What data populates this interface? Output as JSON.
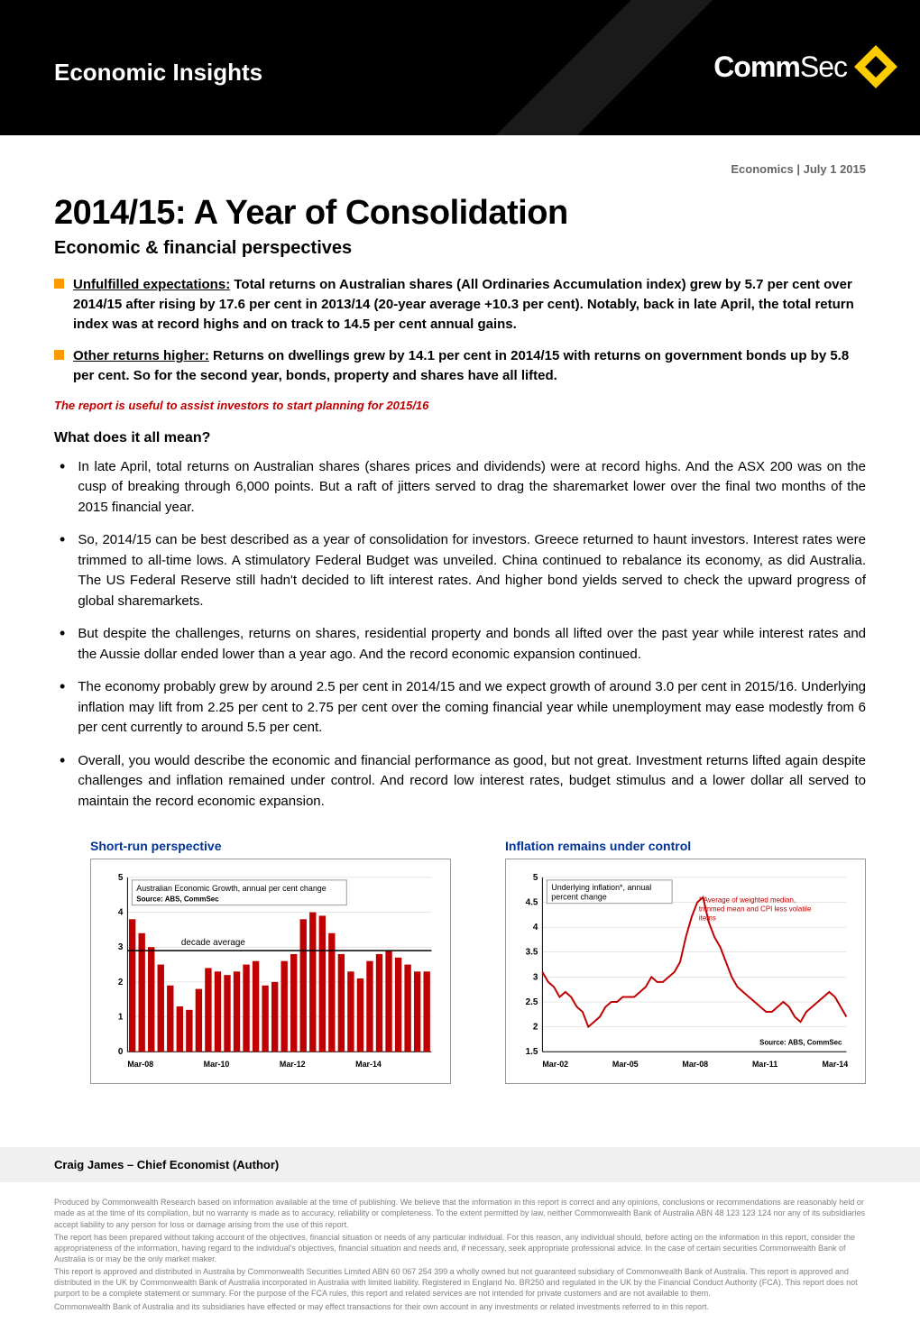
{
  "header": {
    "title": "Economic Insights",
    "logo_bold": "Comm",
    "logo_light": "Sec",
    "logo_bg": "#ffcc00"
  },
  "meta": {
    "category": "Economics",
    "date": "July 1 2015"
  },
  "main_title": "2014/15: A Year of Consolidation",
  "subtitle": "Economic & financial perspectives",
  "key_points": [
    {
      "lead": "Unfulfilled expectations:",
      "text": " Total returns on Australian shares (All Ordinaries Accumulation index) grew by 5.7 per cent over 2014/15 after rising by 17.6 per cent in 2013/14 (20-year average +10.3 per cent). Notably, back in late April, the total return index was at record highs and on track to 14.5 per cent annual gains."
    },
    {
      "lead": "Other returns higher:",
      "text": " Returns on dwellings grew by 14.1 per cent in 2014/15 with returns on government bonds up by 5.8 per cent. So for the second year, bonds, property and shares have all lifted."
    }
  ],
  "report_note": "The report is useful to assist investors to start planning for 2015/16",
  "section_title": "What does it all mean?",
  "body_paragraphs": [
    "In late April, total returns on Australian shares (shares prices and dividends) were at record highs. And the ASX 200 was on the cusp of breaking through 6,000 points. But a raft of jitters served to drag the sharemarket lower over the final two months of the 2015 financial year.",
    "So, 2014/15 can be best described as a year of consolidation for investors. Greece returned to haunt investors. Interest rates were trimmed to all-time lows. A stimulatory Federal Budget was unveiled. China continued to rebalance its economy, as did Australia. The US Federal Reserve still hadn't decided to lift interest rates. And higher bond yields served to check the upward progress of global sharemarkets.",
    "But despite the challenges, returns on shares, residential property and bonds all lifted over the past year while interest rates and the Aussie dollar ended lower than a year ago. And the record economic expansion continued.",
    "The economy probably grew by around 2.5 per cent in 2014/15 and we expect growth of around 3.0 per cent in 2015/16. Underlying inflation may lift from 2.25 per cent to 2.75 per cent over the coming financial year while unemployment may ease modestly from 6 per cent currently to around 5.5 per cent.",
    "Overall, you would describe the economic and financial performance as good, but not great. Investment returns lifted again despite challenges and inflation remained under control. And record low interest rates, budget stimulus and a lower dollar all served to maintain the record economic expansion."
  ],
  "chart1": {
    "type": "bar",
    "title": "Short-run perspective",
    "legend": "Australian Economic Growth, annual per cent change",
    "source": "Source: ABS, CommSec",
    "decade_label": "decade average",
    "x_labels": [
      "Mar-08",
      "Mar-10",
      "Mar-12",
      "Mar-14"
    ],
    "ylim": [
      0,
      5
    ],
    "ytick_step": 1,
    "decade_avg": 2.9,
    "bar_color": "#c00000",
    "line_color": "#000000",
    "grid_color": "#cccccc",
    "values": [
      3.8,
      3.4,
      3.0,
      2.5,
      1.9,
      1.3,
      1.2,
      1.8,
      2.4,
      2.3,
      2.2,
      2.3,
      2.5,
      2.6,
      1.9,
      2.0,
      2.6,
      2.8,
      3.8,
      4.0,
      3.9,
      3.4,
      2.8,
      2.3,
      2.1,
      2.6,
      2.8,
      2.9,
      2.7,
      2.5,
      2.3,
      2.3
    ]
  },
  "chart2": {
    "type": "line",
    "title": "Inflation remains under control",
    "legend": "Underlying inflation*, annual percent change",
    "footnote": "* Average of weighted median, trimmed mean and CPI less volatile items",
    "source": "Source: ABS, CommSec",
    "x_labels": [
      "Mar-02",
      "Mar-05",
      "Mar-08",
      "Mar-11",
      "Mar-14"
    ],
    "ylim": [
      1.5,
      5
    ],
    "ytick_step": 0.5,
    "line_color": "#c00000",
    "grid_color": "#cccccc",
    "values": [
      3.1,
      2.9,
      2.8,
      2.6,
      2.7,
      2.6,
      2.4,
      2.3,
      2.0,
      2.1,
      2.2,
      2.4,
      2.5,
      2.5,
      2.6,
      2.6,
      2.6,
      2.7,
      2.8,
      3.0,
      2.9,
      2.9,
      3.0,
      3.1,
      3.3,
      3.8,
      4.2,
      4.5,
      4.6,
      4.1,
      3.8,
      3.6,
      3.3,
      3.0,
      2.8,
      2.7,
      2.6,
      2.5,
      2.4,
      2.3,
      2.3,
      2.4,
      2.5,
      2.4,
      2.2,
      2.1,
      2.3,
      2.4,
      2.5,
      2.6,
      2.7,
      2.6,
      2.4,
      2.2
    ]
  },
  "author": "Craig James – Chief Economist (Author)",
  "disclaimer": [
    "Produced by Commonwealth Research based on information available at the time of publishing. We believe that the information in this report is correct and any opinions, conclusions or recommendations are reasonably held or made as at the time of its compilation, but no warranty is made as to accuracy, reliability or completeness. To the extent permitted by law, neither Commonwealth Bank of Australia ABN 48 123 123 124 nor any of its subsidiaries accept liability to any person for loss or damage arising from the use of this report.",
    "The report has been prepared without taking account of the objectives, financial situation or needs of any particular individual. For this reason, any individual should, before acting on the information in this report, consider the appropriateness of the information, having regard to the individual's objectives, financial situation and needs and, if necessary, seek appropriate professional advice. In the case of certain securities Commonwealth Bank of Australia is or may be the only market maker.",
    "This report is approved and distributed in Australia by Commonwealth Securities Limited ABN 60 067 254 399 a wholly owned but not guaranteed subsidiary of Commonwealth Bank of Australia. This report is approved and distributed in the UK by Commonwealth Bank of Australia incorporated in Australia with limited liability. Registered in England No. BR250 and regulated in the UK by the Financial Conduct Authority (FCA). This report does not purport to be a complete statement or summary. For the purpose of the FCA rules, this report and related services are not intended for private customers and are not available to them.",
    "Commonwealth Bank of Australia and its subsidiaries have effected or may effect transactions for their own account in any investments or related investments referred to in this report."
  ]
}
